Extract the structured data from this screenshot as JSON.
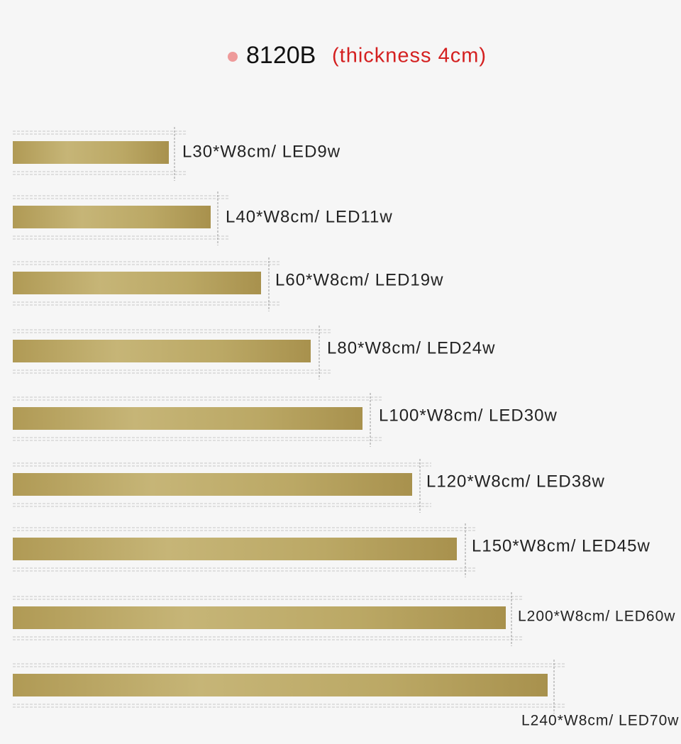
{
  "header": {
    "model": "8120B",
    "note": "(thickness 4cm)"
  },
  "items": [
    {
      "label": "L30*W8cm/ LED9w"
    },
    {
      "label": "L40*W8cm/ LED11w"
    },
    {
      "label": "L60*W8cm/ LED19w"
    },
    {
      "label": "L80*W8cm/ LED24w"
    },
    {
      "label": "L100*W8cm/ LED30w"
    },
    {
      "label": "L120*W8cm/ LED38w"
    },
    {
      "label": "L150*W8cm/ LED45w"
    },
    {
      "label": "L200*W8cm/ LED60w"
    },
    {
      "label": "L240*W8cm/ LED70w"
    }
  ]
}
